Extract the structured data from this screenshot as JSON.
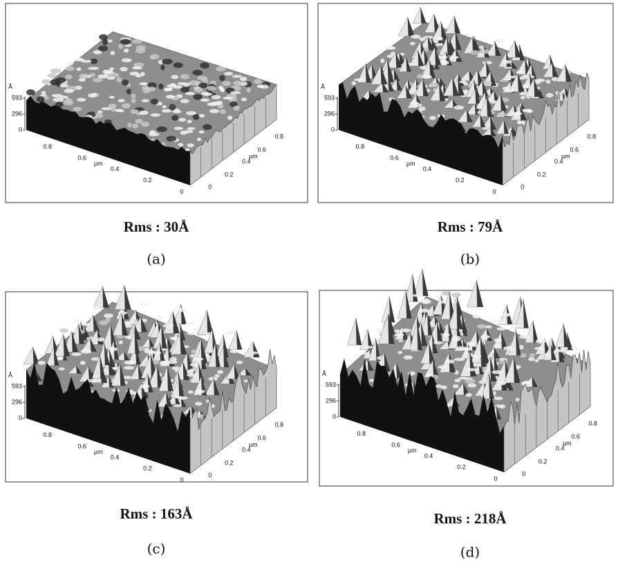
{
  "panels": [
    {
      "z_axis": {
        "unit": "Å",
        "ticks": [
          "593",
          "296",
          "0"
        ]
      },
      "front_axis": [
        "0.8",
        "0.6",
        "µm",
        "0.4",
        "0.2",
        "0"
      ],
      "side_axis": [
        "0",
        "0.2",
        "0.4",
        "µm",
        "0.6",
        "0.8"
      ],
      "caption": "Rms : 30Å",
      "label": "(a)"
    },
    {
      "z_axis": {
        "unit": "Å",
        "ticks": [
          "593",
          "296",
          "0"
        ]
      },
      "front_axis": [
        "0.8",
        "0.6",
        "µm",
        "0.4",
        "0.2",
        "0"
      ],
      "side_axis": [
        "0",
        "0.2",
        "0.4",
        "µm",
        "0.6",
        "0.8"
      ],
      "caption": "Rms : 79Å",
      "label": "(b)"
    },
    {
      "z_axis": {
        "unit": "Å",
        "ticks": [
          "593",
          "296",
          "0"
        ]
      },
      "front_axis": [
        "0.8",
        "0.6",
        "µm",
        "0.4",
        "0.2",
        "0"
      ],
      "side_axis": [
        "0",
        "0.2",
        "0.4",
        "µm",
        "0.6",
        "0.8"
      ],
      "caption": "Rms : 163Å",
      "label": "(c)"
    },
    {
      "z_axis": {
        "unit": "Å",
        "ticks": [
          "593",
          "296",
          "0"
        ]
      },
      "front_axis": [
        "0.8",
        "0.6",
        "µm",
        "0.4",
        "0.2",
        "0"
      ],
      "side_axis": [
        "0",
        "0.2",
        "0.4",
        "µm",
        "0.6",
        "0.8"
      ],
      "caption": "Rms : 218Å",
      "label": "(d)"
    }
  ]
}
